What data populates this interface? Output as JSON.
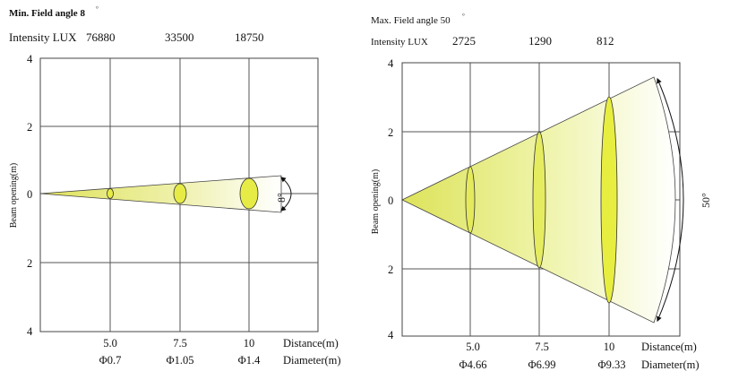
{
  "left": {
    "title": "Min. Field angle 8",
    "title_sup": "°",
    "intensity_label": "Intensity LUX",
    "intensity_values": [
      "76880",
      "33500",
      "18750"
    ],
    "y_label": "Beam opening(m)",
    "y_ticks": [
      "4",
      "2",
      "0",
      "2",
      "4"
    ],
    "distance_ticks": [
      "5.0",
      "7.5",
      "10"
    ],
    "diameter_ticks": [
      "Φ0.7",
      "Φ1.05",
      "Φ1.4"
    ],
    "distance_label": "Distance(m)",
    "diameter_label": "Diameter(m)",
    "angle_label": "8°"
  },
  "right": {
    "title": "Max. Field angle 50",
    "title_sup": "°",
    "intensity_label": "Intensity LUX",
    "intensity_values": [
      "2725",
      "1290",
      "812"
    ],
    "y_label": "Beam opening(m)",
    "y_ticks": [
      "4",
      "2",
      "0",
      "2",
      "4"
    ],
    "distance_ticks": [
      "5.0",
      "7.5",
      "10"
    ],
    "diameter_ticks": [
      "Φ4.66",
      "Φ6.99",
      "Φ9.33"
    ],
    "distance_label": "Distance(m)",
    "diameter_label": "Diameter(m)",
    "angle_label": "50°"
  },
  "colors": {
    "beam": "#dde35a",
    "ellipse": "#e8ee40",
    "grid": "#555555"
  }
}
